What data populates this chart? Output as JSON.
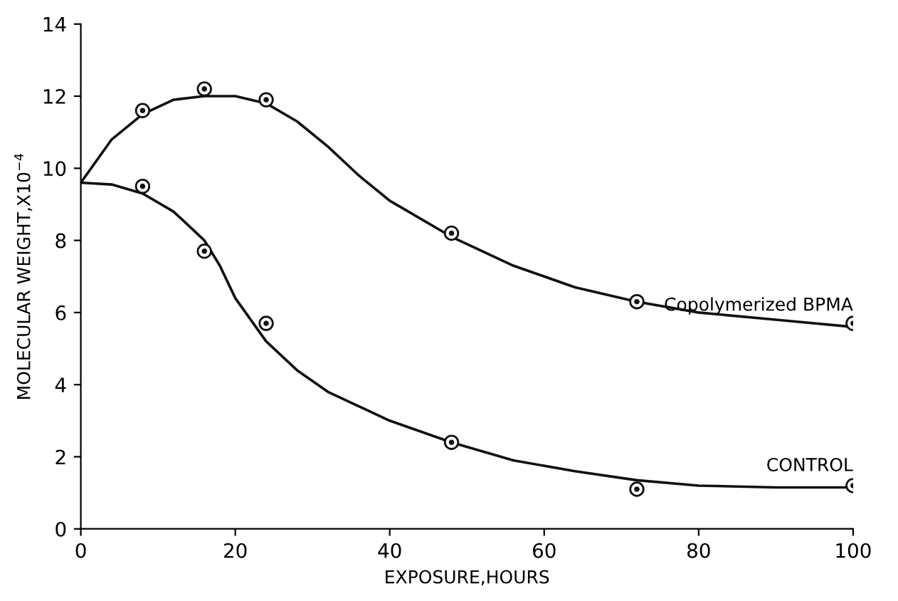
{
  "chart_data": {
    "type": "scatter",
    "xlabel": "EXPOSURE,HOURS",
    "ylabel": "MOLECULAR WEIGHT,X10$^{−4}$",
    "xlim": [
      0,
      100
    ],
    "ylim": [
      0,
      14
    ],
    "xticks": [
      0,
      20,
      40,
      60,
      80,
      100
    ],
    "yticks": [
      0,
      2,
      4,
      6,
      8,
      10,
      12,
      14
    ],
    "grid": false,
    "legend": false,
    "series": [
      {
        "type": "line",
        "name": "Copolymerized BPMA",
        "color": "#111111",
        "marker": "none",
        "line_style": "solid",
        "x": [
          0,
          4,
          8,
          12,
          16,
          20,
          24,
          28,
          32,
          36,
          40,
          48,
          56,
          64,
          72,
          80,
          90,
          100
        ],
        "values": [
          9.6,
          10.8,
          11.5,
          11.9,
          12.0,
          12.0,
          11.8,
          11.3,
          10.6,
          9.8,
          9.1,
          8.1,
          7.3,
          6.7,
          6.3,
          6.0,
          5.8,
          5.6
        ]
      },
      {
        "type": "line",
        "name": "CONTROL",
        "color": "#111111",
        "marker": "none",
        "line_style": "solid",
        "x": [
          0,
          4,
          8,
          12,
          16,
          18,
          20,
          24,
          28,
          32,
          40,
          48,
          56,
          64,
          72,
          80,
          90,
          100
        ],
        "values": [
          9.6,
          9.55,
          9.3,
          8.8,
          8.0,
          7.3,
          6.4,
          5.2,
          4.4,
          3.8,
          3.0,
          2.4,
          1.9,
          1.6,
          1.35,
          1.2,
          1.15,
          1.15
        ]
      },
      {
        "color": "#111111",
        "marker": "circle",
        "x": [
          8,
          16,
          24,
          48,
          72,
          100
        ],
        "values": [
          11.6,
          12.2,
          11.9,
          8.2,
          6.3,
          5.7
        ]
      },
      {
        "color": "#111111",
        "marker": "circle",
        "x": [
          8,
          16,
          24,
          48,
          72,
          100
        ],
        "values": [
          9.5,
          7.7,
          5.7,
          2.4,
          1.1,
          1.2
        ]
      }
    ]
  }
}
